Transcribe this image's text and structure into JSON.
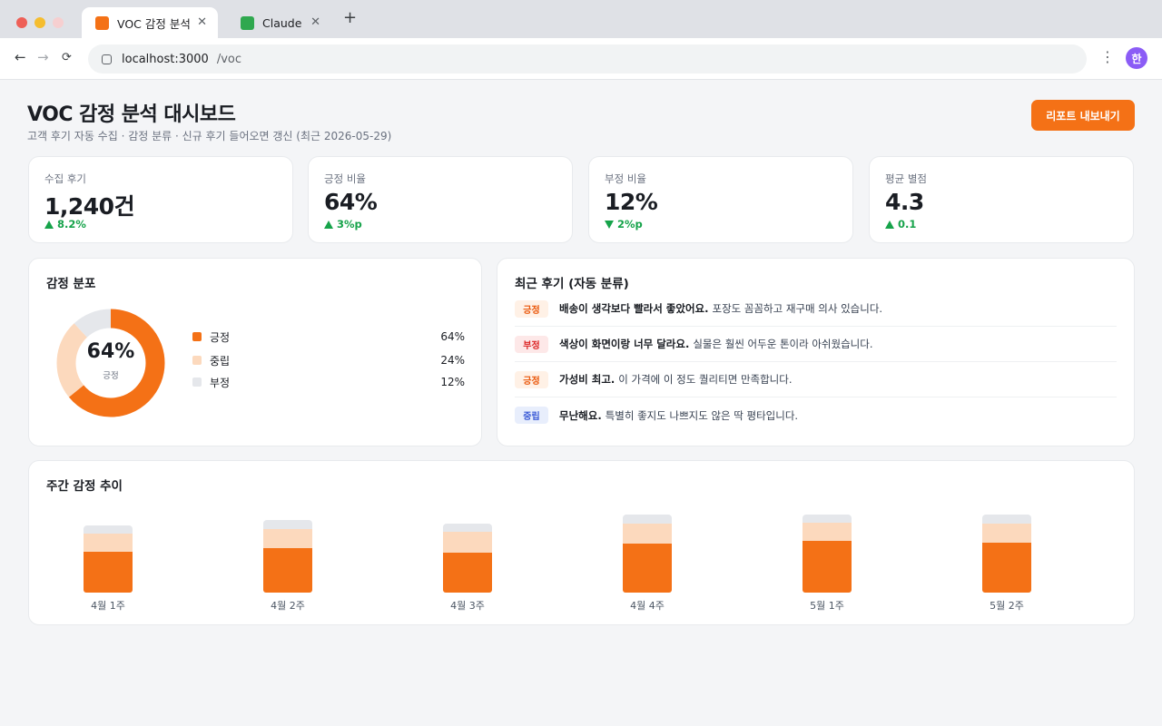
{
  "browser": {
    "tabs": [
      {
        "label": "VOC 감정 분석",
        "favicon_color": "#f47116"
      },
      {
        "label": "Claude",
        "favicon_color": "#2fa84f"
      }
    ],
    "new_tab": "+",
    "close_glyph": "✕",
    "url_host": "localhost:3000",
    "url_path": "/voc",
    "profile_initial": "한"
  },
  "header": {
    "title": "VOC 감정 분석 대시보드",
    "subtitle": "고객 후기 자동 수집 · 감정 분류 · 신규 후기 들어오면 갱신 (최근 2026-05-29)",
    "export_label": "리포트 내보내기"
  },
  "kpis": [
    {
      "label": "수집 후기",
      "value": "1,240건",
      "delta": "8.2%",
      "direction": "up"
    },
    {
      "label": "긍정 비율",
      "value": "64%",
      "delta": "3%p",
      "direction": "up"
    },
    {
      "label": "부정 비율",
      "value": "12%",
      "delta": "2%p",
      "direction": "down"
    },
    {
      "label": "평균 별점",
      "value": "4.3",
      "delta": "0.1",
      "direction": "up"
    }
  ],
  "distribution": {
    "title": "감정 분포",
    "center_value": "64%",
    "center_label": "긍정",
    "items": [
      {
        "label": "긍정",
        "value": "64%",
        "share": 64,
        "color": "#f47116"
      },
      {
        "label": "중립",
        "value": "24%",
        "share": 24,
        "color": "#fcd9bd"
      },
      {
        "label": "부정",
        "value": "12%",
        "share": 12,
        "color": "#e5e7eb"
      }
    ]
  },
  "reviews": {
    "title": "최근 후기 (자동 분류)",
    "items": [
      {
        "badge": "긍정",
        "tone": "pos",
        "headline": "배송이 생각보다 빨라서 좋았어요.",
        "body": "포장도 꼼꼼하고 재구매 의사 있습니다."
      },
      {
        "badge": "부정",
        "tone": "neg",
        "headline": "색상이 화면이랑 너무 달라요.",
        "body": "실물은 훨씬 어두운 톤이라 아쉬웠습니다."
      },
      {
        "badge": "긍정",
        "tone": "pos",
        "headline": "가성비 최고.",
        "body": "이 가격에 이 정도 퀄리티면 만족합니다."
      },
      {
        "badge": "중립",
        "tone": "neu",
        "headline": "무난해요.",
        "body": "특별히 좋지도 나쁘지도 않은 딱 평타입니다."
      }
    ]
  },
  "trend": {
    "title": "주간 감정 추이"
  },
  "chart_data": {
    "type": "bar",
    "stacked": true,
    "categories": [
      "4월 1주",
      "4월 2주",
      "4월 3주",
      "4월 4주",
      "5월 1주",
      "5월 2주"
    ],
    "series": [
      {
        "name": "긍정",
        "color": "#f47116",
        "values": [
          48,
          53,
          47,
          58,
          61,
          59
        ]
      },
      {
        "name": "중립",
        "color": "#fcd9bd",
        "values": [
          22,
          22,
          25,
          24,
          22,
          23
        ]
      },
      {
        "name": "부정",
        "color": "#e5e7eb",
        "values": [
          10,
          11,
          10,
          11,
          10,
          11
        ]
      }
    ],
    "ylim": [
      0,
      100
    ]
  }
}
